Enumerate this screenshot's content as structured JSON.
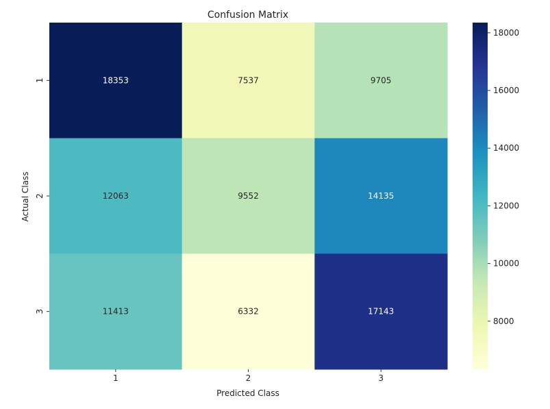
{
  "chart_data": {
    "type": "heatmap",
    "title": "Confusion Matrix",
    "xlabel": "Predicted Class",
    "ylabel": "Actual Class",
    "x_categories": [
      "1",
      "2",
      "3"
    ],
    "y_categories": [
      "1",
      "2",
      "3"
    ],
    "values": [
      [
        18353,
        7537,
        9705
      ],
      [
        12063,
        9552,
        14135
      ],
      [
        11413,
        6332,
        17143
      ]
    ],
    "colormap": "YlGnBu",
    "color_range": [
      6332,
      18353
    ],
    "colorbar_ticks": [
      8000,
      10000,
      12000,
      14000,
      16000,
      18000
    ],
    "colorbar_tick_labels": [
      "8000",
      "10000",
      "12000",
      "14000",
      "16000",
      "18000"
    ]
  }
}
